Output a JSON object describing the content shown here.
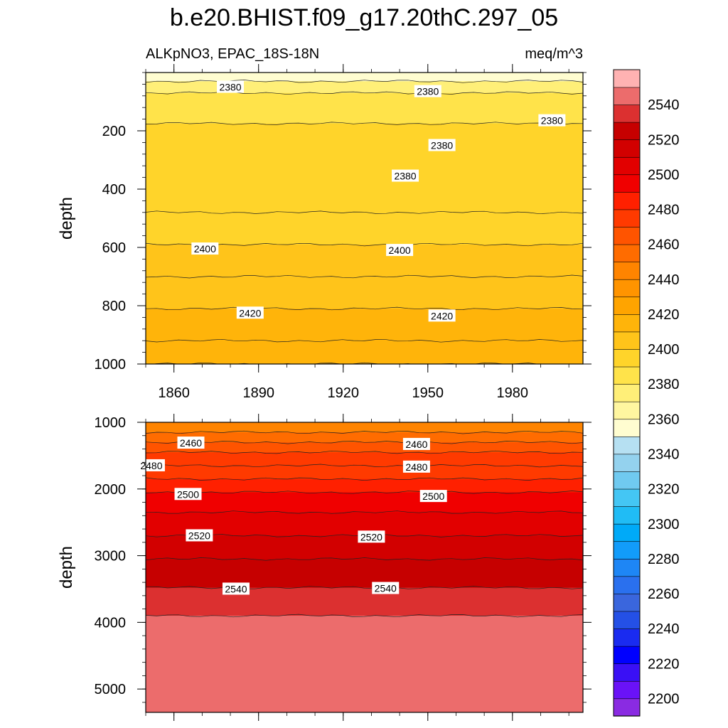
{
  "title": "b.e20.BHIST.f09_g17.20thC.297_05",
  "chart_data": [
    {
      "type": "heatmap",
      "subtype": "filled-contour",
      "title": "b.e20.BHIST.f09_g17.20thC.297_05",
      "left_label": "ALKpNO3, EPAC_18S-18N",
      "right_label": "meq/m^3",
      "xlabel": "",
      "ylabel": "depth",
      "xlim": [
        1850,
        2005
      ],
      "ylim": [
        1000,
        0
      ],
      "x_ticks": [
        1860,
        1890,
        1920,
        1950,
        1980
      ],
      "y_ticks": [
        200,
        400,
        600,
        800,
        1000
      ],
      "y_reversed": true,
      "bands": [
        {
          "depth": 0,
          "value": 2355
        },
        {
          "depth": 30,
          "value": 2375
        },
        {
          "depth": 70,
          "value": 2385
        },
        {
          "depth": 175,
          "value": 2390
        },
        {
          "depth": 480,
          "value": 2395
        },
        {
          "depth": 590,
          "value": 2400
        },
        {
          "depth": 700,
          "value": 2405
        },
        {
          "depth": 810,
          "value": 2410
        },
        {
          "depth": 920,
          "value": 2415
        },
        {
          "depth": 1000,
          "value": 2420
        }
      ],
      "contour_labels": [
        {
          "x": 1880,
          "depth": 50,
          "text": "2380"
        },
        {
          "x": 1950,
          "depth": 65,
          "text": "2380"
        },
        {
          "x": 1955,
          "depth": 250,
          "text": "2380"
        },
        {
          "x": 1994,
          "depth": 165,
          "text": "2380"
        },
        {
          "x": 1942,
          "depth": 355,
          "text": "2380"
        },
        {
          "x": 1871,
          "depth": 605,
          "text": "2400"
        },
        {
          "x": 1940,
          "depth": 610,
          "text": "2400"
        },
        {
          "x": 1887,
          "depth": 825,
          "text": "2420"
        },
        {
          "x": 1955,
          "depth": 835,
          "text": "2420"
        }
      ]
    },
    {
      "type": "heatmap",
      "subtype": "filled-contour",
      "xlabel": "",
      "ylabel": "depth",
      "xlim": [
        1850,
        2005
      ],
      "ylim": [
        5350,
        1000
      ],
      "y_ticks": [
        1000,
        2000,
        3000,
        4000,
        5000
      ],
      "y_reversed": true,
      "bands": [
        {
          "depth": 1000,
          "value": 2445
        },
        {
          "depth": 1150,
          "value": 2455
        },
        {
          "depth": 1300,
          "value": 2460
        },
        {
          "depth": 1450,
          "value": 2470
        },
        {
          "depth": 1650,
          "value": 2475
        },
        {
          "depth": 1850,
          "value": 2485
        },
        {
          "depth": 2050,
          "value": 2495
        },
        {
          "depth": 2350,
          "value": 2505
        },
        {
          "depth": 2700,
          "value": 2515
        },
        {
          "depth": 3050,
          "value": 2525
        },
        {
          "depth": 3480,
          "value": 2535
        },
        {
          "depth": 3900,
          "value": 2545
        }
      ],
      "contour_labels": [
        {
          "x": 1866,
          "depth": 1310,
          "text": "2460"
        },
        {
          "x": 1946,
          "depth": 1330,
          "text": "2460"
        },
        {
          "x": 1852,
          "depth": 1650,
          "text": "2480"
        },
        {
          "x": 1946,
          "depth": 1670,
          "text": "2480"
        },
        {
          "x": 1865,
          "depth": 2080,
          "text": "2500"
        },
        {
          "x": 1952,
          "depth": 2110,
          "text": "2500"
        },
        {
          "x": 1869,
          "depth": 2700,
          "text": "2520"
        },
        {
          "x": 1930,
          "depth": 2720,
          "text": "2520"
        },
        {
          "x": 1882,
          "depth": 3500,
          "text": "2540"
        },
        {
          "x": 1935,
          "depth": 3490,
          "text": "2540"
        }
      ]
    }
  ],
  "colorbar": {
    "labels": [
      "2540",
      "2520",
      "2500",
      "2480",
      "2460",
      "2440",
      "2420",
      "2400",
      "2380",
      "2360",
      "2340",
      "2320",
      "2300",
      "2280",
      "2260",
      "2240",
      "2220",
      "2200"
    ],
    "label_values": [
      2540,
      2520,
      2500,
      2480,
      2460,
      2440,
      2420,
      2400,
      2380,
      2360,
      2340,
      2320,
      2300,
      2280,
      2260,
      2240,
      2220,
      2200
    ],
    "min": 2190,
    "max": 2560,
    "step": 10,
    "colors": [
      "#8a2be2",
      "#6a12f7",
      "#3a10f5",
      "#0000ff",
      "#1a2bf0",
      "#2450e6",
      "#3a66dd",
      "#2a70ee",
      "#1e86f5",
      "#129cfa",
      "#00aaf8",
      "#20bcf5",
      "#44c6f4",
      "#70caf0",
      "#94d2ee",
      "#b6e0f2",
      "#fffdd0",
      "#fff6a0",
      "#ffef78",
      "#ffe34a",
      "#ffd42a",
      "#ffc41a",
      "#ffb40a",
      "#ffa400",
      "#ff9400",
      "#ff8400",
      "#ff6c00",
      "#ff5400",
      "#ff3a00",
      "#ff2000",
      "#f00000",
      "#e20000",
      "#d20000",
      "#c60000",
      "#dc3030",
      "#ec6c6c",
      "#ffb2b2"
    ]
  }
}
